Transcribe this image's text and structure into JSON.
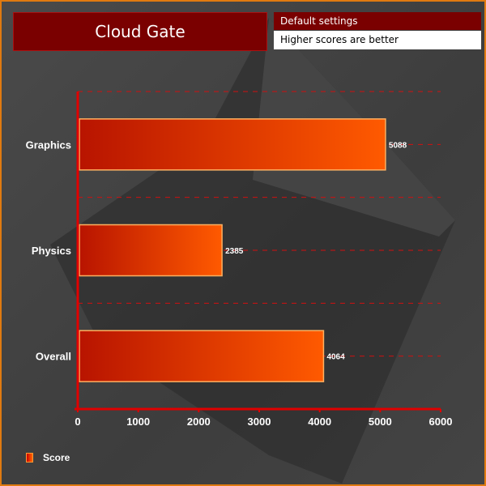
{
  "header": {
    "title": "Cloud Gate",
    "settings": "Default settings",
    "note": "Higher scores are better"
  },
  "colors": {
    "bar_start": "#b81400",
    "bar_end": "#ff5a00",
    "axis": "#e00000",
    "border": "#e07a10"
  },
  "chart_data": {
    "type": "bar",
    "orientation": "horizontal",
    "categories": [
      "Graphics",
      "Physics",
      "Overall"
    ],
    "series": [
      {
        "name": "Score",
        "values": [
          5088,
          2385,
          4064
        ]
      }
    ],
    "xlim": [
      0,
      6000
    ],
    "xticks": [
      "0",
      "1000",
      "2000",
      "3000",
      "4000",
      "5000",
      "6000"
    ],
    "grid": true,
    "legend": "bottom-left"
  }
}
